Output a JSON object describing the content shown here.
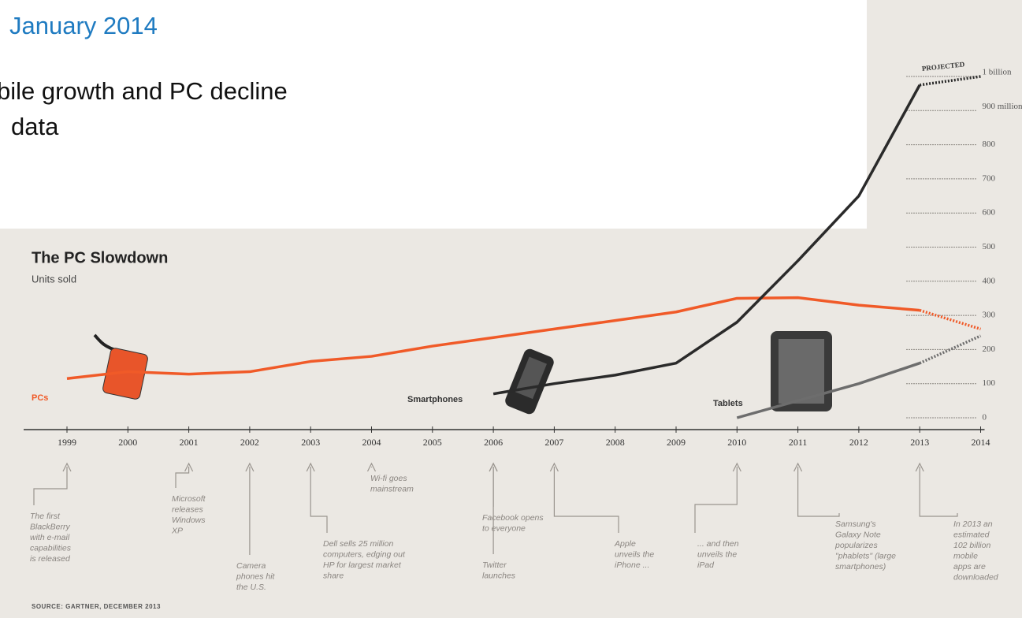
{
  "slide": {
    "date": "January 2014",
    "lines": [
      "bile growth and PC decline",
      "data"
    ]
  },
  "chart_data": {
    "type": "line",
    "title": "The PC Slowdown",
    "subtitle": "Units sold",
    "x": [
      1999,
      2000,
      2001,
      2002,
      2003,
      2004,
      2005,
      2006,
      2007,
      2008,
      2009,
      2010,
      2011,
      2012,
      2013,
      2014
    ],
    "series": [
      {
        "name": "PCs",
        "color": "#f05a28",
        "values": [
          115,
          135,
          128,
          135,
          165,
          180,
          210,
          235,
          260,
          285,
          310,
          350,
          352,
          330,
          315,
          260
        ]
      },
      {
        "name": "Smartphones",
        "color": "#2a2a2a",
        "values": [
          null,
          null,
          null,
          null,
          null,
          null,
          null,
          70,
          100,
          125,
          160,
          280,
          460,
          650,
          975,
          1000
        ]
      },
      {
        "name": "Tablets",
        "color": "#6d6d6d",
        "values": [
          null,
          null,
          null,
          null,
          null,
          null,
          null,
          null,
          null,
          null,
          null,
          0,
          50,
          100,
          160,
          240
        ]
      }
    ],
    "projected_from": 2013,
    "projected_label": "PROJECTED",
    "ylim": [
      0,
      1000
    ],
    "yticks": [
      0,
      100,
      200,
      300,
      400,
      500,
      600,
      700,
      800,
      {
        "value": 900,
        "label": "900 million"
      },
      {
        "value": 1000,
        "label": "1 billion"
      }
    ],
    "annotations": [
      {
        "x": 1999,
        "lines": [
          "The first",
          "BlackBerry",
          "with e-mail",
          "capabilities",
          "is released"
        ]
      },
      {
        "x": 2001,
        "lines": [
          "Microsoft",
          "releases",
          "Windows",
          "XP"
        ]
      },
      {
        "x": 2002,
        "lines": [
          "Camera",
          "phones hit",
          "the U.S."
        ]
      },
      {
        "x": 2003,
        "lines": [
          "Dell sells 25 million",
          "computers, edging out",
          "HP for largest market",
          "share"
        ]
      },
      {
        "x": 2004,
        "lines": [
          "Wi-fi goes",
          "mainstream"
        ]
      },
      {
        "x": 2006,
        "lines": [
          "Facebook opens",
          "to everyone"
        ]
      },
      {
        "x": 2006,
        "lines": [
          "Twitter",
          "launches"
        ]
      },
      {
        "x": 2007,
        "lines": [
          "Apple",
          "unveils the",
          "iPhone ..."
        ]
      },
      {
        "x": 2010,
        "lines": [
          "... and then",
          "unveils the",
          "iPad"
        ]
      },
      {
        "x": 2011,
        "lines": [
          "Samsung's",
          "Galaxy Note",
          "popularizes",
          "\"phablets\" (large",
          "smartphones)"
        ]
      },
      {
        "x": 2013,
        "lines": [
          "In 2013 an",
          "estimated",
          "102 billion",
          "mobile",
          "apps are",
          "downloaded"
        ]
      }
    ],
    "source": "SOURCE: GARTNER, DECEMBER 2013"
  }
}
